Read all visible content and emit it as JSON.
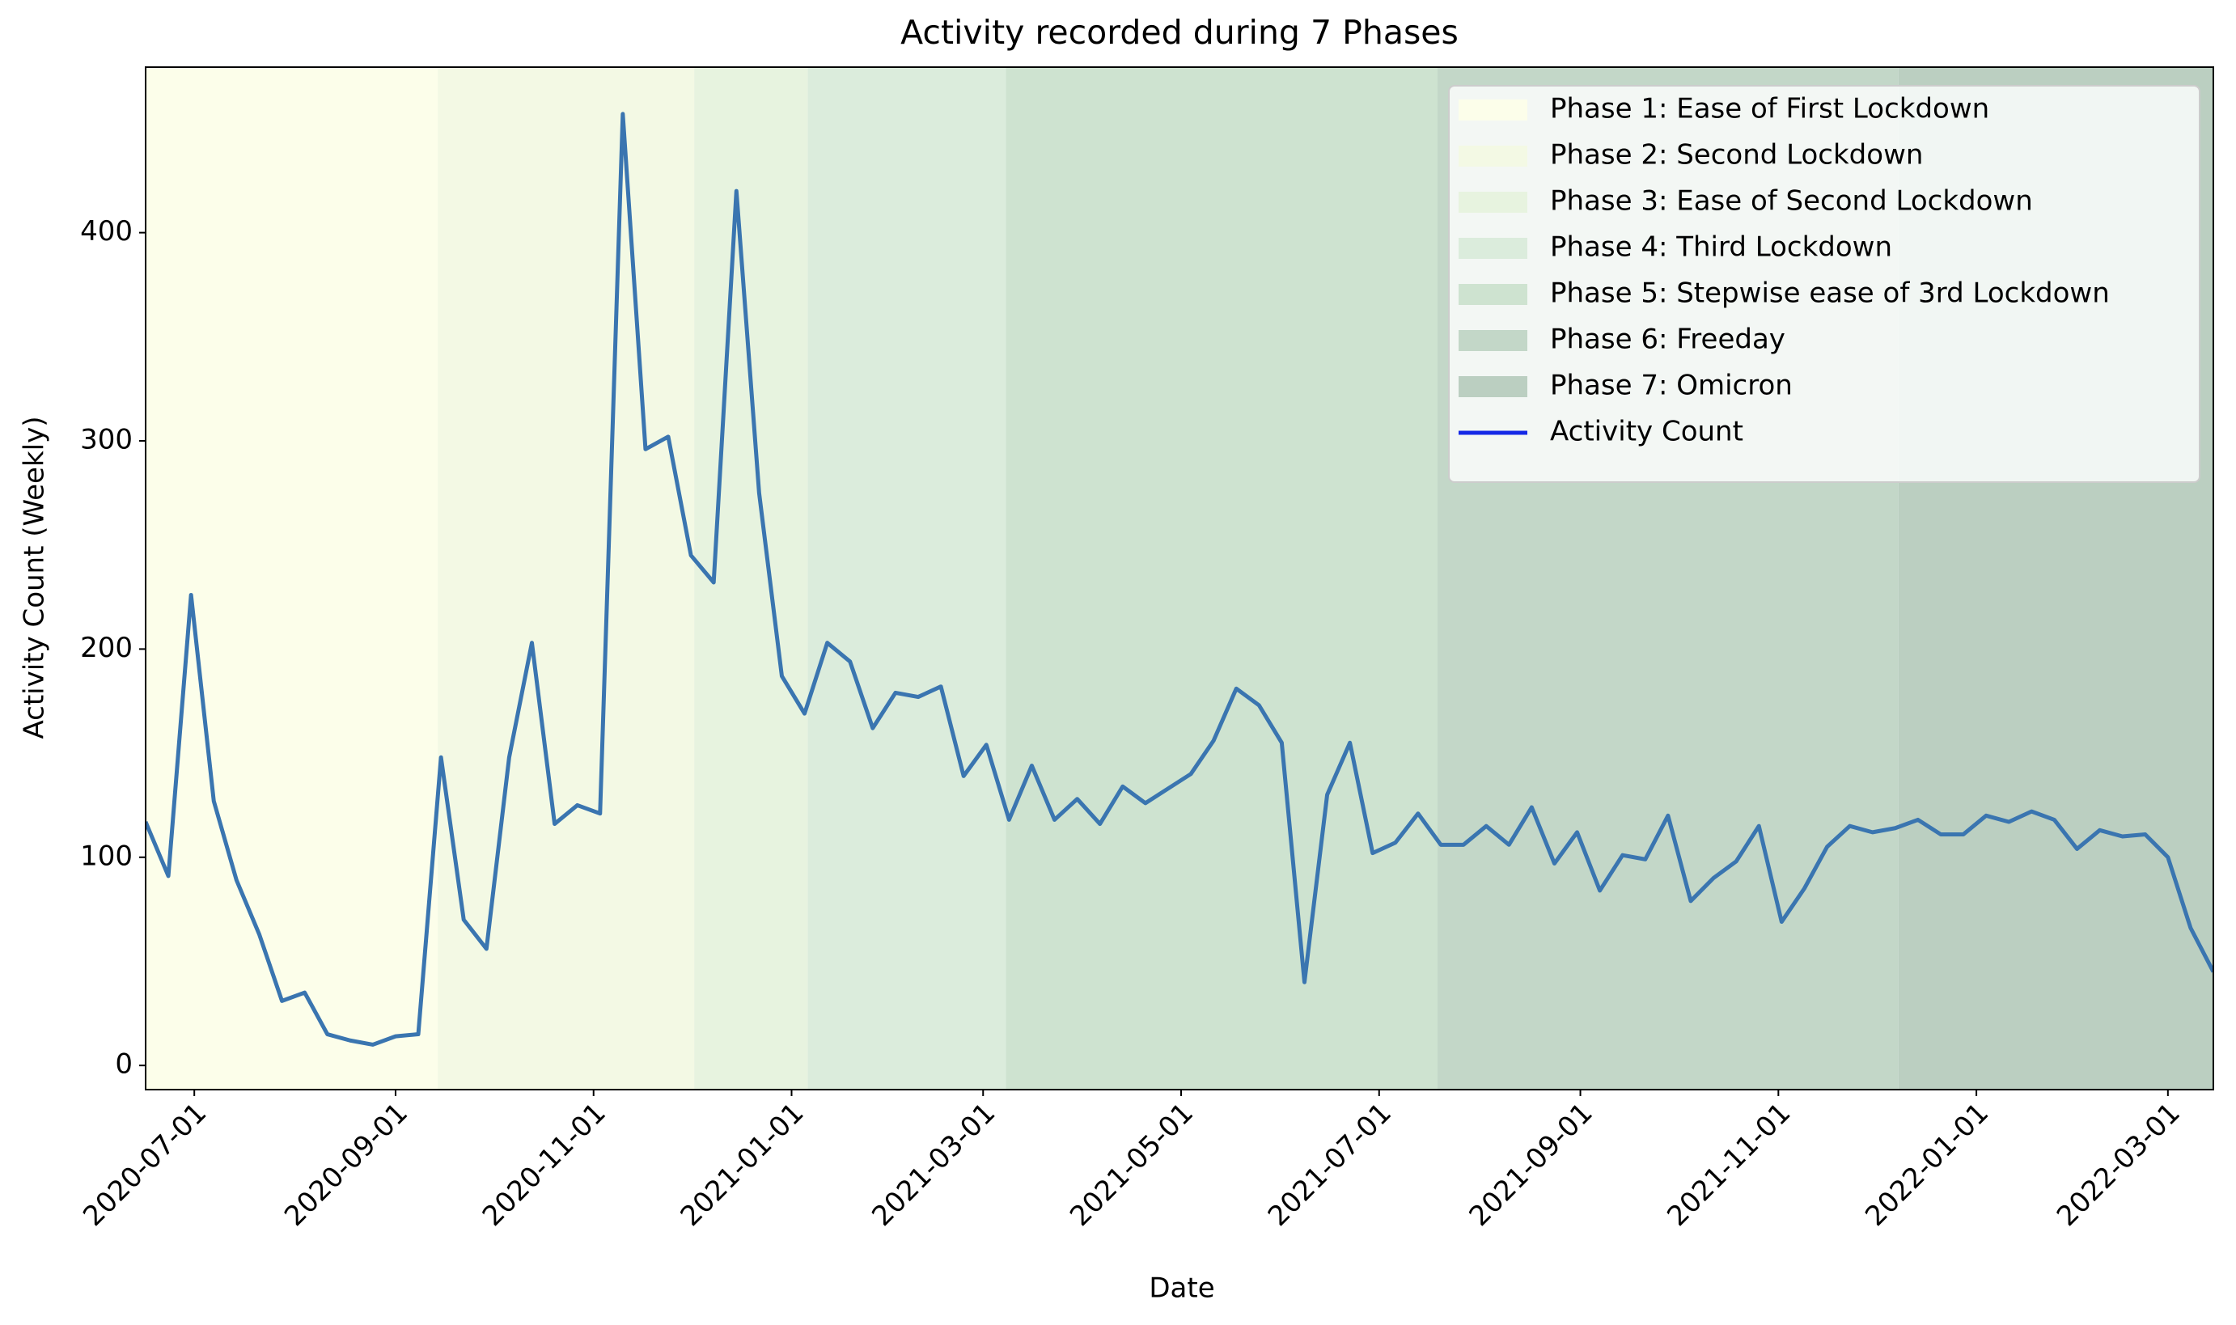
{
  "chart_data": {
    "type": "line",
    "title": "Activity recorded during 7 Phases",
    "xlabel": "Date",
    "ylabel": "Activity Count (Weekly)",
    "x": [
      "2020-06-16",
      "2020-06-23",
      "2020-06-30",
      "2020-07-07",
      "2020-07-14",
      "2020-07-21",
      "2020-07-28",
      "2020-08-04",
      "2020-08-11",
      "2020-08-18",
      "2020-08-25",
      "2020-09-01",
      "2020-09-08",
      "2020-09-15",
      "2020-09-22",
      "2020-09-29",
      "2020-10-06",
      "2020-10-13",
      "2020-10-20",
      "2020-10-27",
      "2020-11-03",
      "2020-11-10",
      "2020-11-17",
      "2020-11-24",
      "2020-12-01",
      "2020-12-08",
      "2020-12-15",
      "2020-12-22",
      "2020-12-29",
      "2021-01-05",
      "2021-01-12",
      "2021-01-19",
      "2021-01-26",
      "2021-02-02",
      "2021-02-09",
      "2021-02-16",
      "2021-02-23",
      "2021-03-02",
      "2021-03-09",
      "2021-03-16",
      "2021-03-23",
      "2021-03-30",
      "2021-04-06",
      "2021-04-13",
      "2021-04-20",
      "2021-04-27",
      "2021-05-04",
      "2021-05-11",
      "2021-05-18",
      "2021-05-25",
      "2021-06-01",
      "2021-06-08",
      "2021-06-15",
      "2021-06-22",
      "2021-06-29",
      "2021-07-06",
      "2021-07-13",
      "2021-07-20",
      "2021-07-27",
      "2021-08-03",
      "2021-08-10",
      "2021-08-17",
      "2021-08-24",
      "2021-08-31",
      "2021-09-07",
      "2021-09-14",
      "2021-09-21",
      "2021-09-28",
      "2021-10-05",
      "2021-10-12",
      "2021-10-19",
      "2021-10-26",
      "2021-11-02",
      "2021-11-09",
      "2021-11-16",
      "2021-11-23",
      "2021-11-30",
      "2021-12-07",
      "2021-12-14",
      "2021-12-21",
      "2021-12-28",
      "2022-01-04",
      "2022-01-11",
      "2022-01-18",
      "2022-01-25",
      "2022-02-01",
      "2022-02-08",
      "2022-02-15",
      "2022-02-22",
      "2022-03-01",
      "2022-03-08",
      "2022-03-15"
    ],
    "series": [
      {
        "name": "Activity Count",
        "color": "#3a75b0",
        "legend_color": "#1428e6",
        "values": [
          117,
          91,
          226,
          127,
          89,
          63,
          31,
          35,
          15,
          12,
          10,
          14,
          15,
          148,
          70,
          56,
          148,
          203,
          116,
          125,
          121,
          457,
          296,
          302,
          245,
          232,
          420,
          275,
          187,
          169,
          203,
          194,
          162,
          179,
          177,
          182,
          139,
          154,
          118,
          144,
          118,
          128,
          116,
          134,
          126,
          133,
          140,
          156,
          181,
          173,
          155,
          40,
          130,
          155,
          102,
          107,
          121,
          106,
          106,
          115,
          106,
          124,
          97,
          112,
          84,
          101,
          99,
          120,
          79,
          90,
          98,
          115,
          69,
          85,
          105,
          115,
          112,
          114,
          118,
          111,
          111,
          120,
          117,
          122,
          118,
          104,
          113,
          110,
          111,
          100,
          66,
          45
        ]
      }
    ],
    "phases": [
      {
        "name": "Phase 1: Ease of First Lockdown",
        "color": "#fcfeea",
        "span": [
          "2020-06-16",
          "2020-09-14"
        ]
      },
      {
        "name": "Phase 2: Second Lockdown",
        "color": "#f3f9e4",
        "span": [
          "2020-09-14",
          "2020-12-02"
        ]
      },
      {
        "name": "Phase 3: Ease of Second Lockdown",
        "color": "#e7f3df",
        "span": [
          "2020-12-02",
          "2021-01-06"
        ]
      },
      {
        "name": "Phase 4: Third Lockdown",
        "color": "#dbecdc",
        "span": [
          "2021-01-06",
          "2021-03-08"
        ]
      },
      {
        "name": "Phase 5: Stepwise ease of 3rd Lockdown",
        "color": "#cee3d0",
        "span": [
          "2021-03-08",
          "2021-07-19"
        ]
      },
      {
        "name": "Phase 6: Freeday",
        "color": "#c3d7c8",
        "span": [
          "2021-07-19",
          "2021-12-08"
        ]
      },
      {
        "name": "Phase 7: Omicron",
        "color": "#bbcfc1",
        "span": [
          "2021-12-08",
          "2022-03-15"
        ]
      }
    ],
    "xlim": [
      "2020-06-16",
      "2022-03-15"
    ],
    "xticks": [
      "2020-07-01",
      "2020-09-01",
      "2020-11-01",
      "2021-01-01",
      "2021-03-01",
      "2021-05-01",
      "2021-07-01",
      "2021-09-01",
      "2021-11-01",
      "2022-01-01",
      "2022-03-01"
    ],
    "ylim": [
      -11.6,
      479.5
    ],
    "yticks": [
      0,
      100,
      200,
      300,
      400
    ],
    "grid": false,
    "legend": "upper right"
  }
}
